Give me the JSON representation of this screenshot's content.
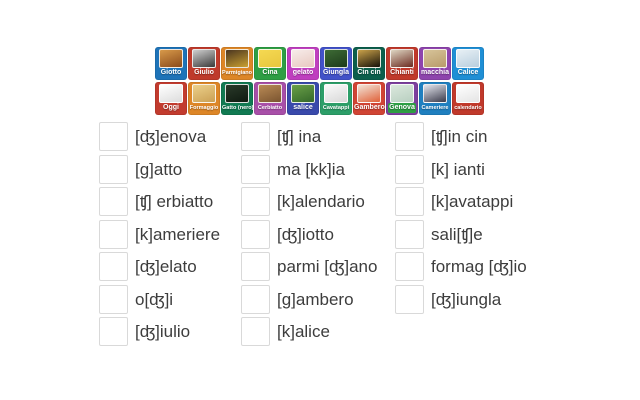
{
  "tiles": {
    "rows": [
      [
        {
          "label": "Giotto",
          "bg": "#1e73b8",
          "photo": [
            "#d89a4a",
            "#8a4a1a"
          ]
        },
        {
          "label": "Giulio",
          "bg": "#bf3a2b",
          "photo": [
            "#cfcfcf",
            "#3a3a3a"
          ]
        },
        {
          "label": "Parmigiano",
          "bg": "#dd8627",
          "photo": [
            "#4a3520",
            "#caa030"
          ]
        },
        {
          "label": "Cina",
          "bg": "#2e9e44",
          "photo": [
            "#f5d952",
            "#e8c63e"
          ]
        },
        {
          "label": "gelato",
          "bg": "#bf3fbf",
          "photo": [
            "#f7ecea",
            "#e8c8c0"
          ]
        },
        {
          "label": "Giungla",
          "bg": "#4252c9",
          "photo": [
            "#3d6b35",
            "#1d3a1a"
          ]
        },
        {
          "label": "Cin cin",
          "bg": "#0c5f4c",
          "photo": [
            "#caa24a",
            "#151008"
          ]
        },
        {
          "label": "Chianti",
          "bg": "#c0392b",
          "photo": [
            "#ded6c2",
            "#6b2a20"
          ]
        },
        {
          "label": "macchia",
          "bg": "#8e44ad",
          "photo": [
            "#d7c49a",
            "#b89b6a"
          ]
        },
        {
          "label": "Calice",
          "bg": "#1f8fd5",
          "photo": [
            "#e8f0f5",
            "#b8cede"
          ]
        }
      ],
      [
        {
          "label": "Oggi",
          "bg": "#c23b2e",
          "photo": [
            "#ffffff",
            "#dcdcdc"
          ]
        },
        {
          "label": "Formaggio",
          "bg": "#dd8627",
          "photo": [
            "#ecd08a",
            "#caa055"
          ]
        },
        {
          "label": "Gatto (nero)",
          "bg": "#117a52",
          "photo": [
            "#2a3a2a",
            "#0f1a10"
          ]
        },
        {
          "label": "Cerbiatto",
          "bg": "#a84fa8",
          "photo": [
            "#b98a55",
            "#7a5430"
          ]
        },
        {
          "label": "salice",
          "bg": "#3949ab",
          "photo": [
            "#6aa048",
            "#35682a"
          ]
        },
        {
          "label": "Cavatappi",
          "bg": "#2c9e68",
          "photo": [
            "#fafafa",
            "#d8d8d8"
          ]
        },
        {
          "label": "Gambero",
          "bg": "#d04434",
          "photo": [
            "#f2e4d8",
            "#e06038"
          ]
        },
        {
          "label": "Genova",
          "bg": "#7c3f9e",
          "photo": [
            "#dbe8dd",
            "#b8cfc0"
          ],
          "label_bg": "#2e9e44"
        },
        {
          "label": "Cameriere",
          "bg": "#1f7fbf",
          "photo": [
            "#e4e6ee",
            "#3a3a4a"
          ]
        },
        {
          "label": "calendario",
          "bg": "#c0392b",
          "photo": [
            "#ffffff",
            "#e4e4e4"
          ]
        }
      ]
    ]
  },
  "board": {
    "columns": [
      {
        "items": [
          "[ʤ]enova",
          "[g]atto",
          "[ʧ] erbiatto",
          "[k]ameriere",
          "[ʤ]elato",
          "o[ʤ]i",
          "[ʤ]iulio"
        ]
      },
      {
        "items": [
          "[ʧ] ina",
          "ma [kk]ia",
          "[k]alendario",
          "[ʤ]iotto",
          "parmi [ʤ]ano",
          "[g]ambero",
          "[k]alice"
        ]
      },
      {
        "items": [
          "[ʧ]in cin",
          "[k] ianti",
          "[k]avatappi",
          "sali[ʧ]e",
          "formag [ʤ]io",
          "[ʤ]iungla"
        ]
      }
    ]
  },
  "colors": {
    "page_background": "#ffffff",
    "slot_border": "#d9d9d9",
    "item_text": "#3d3d3d"
  }
}
